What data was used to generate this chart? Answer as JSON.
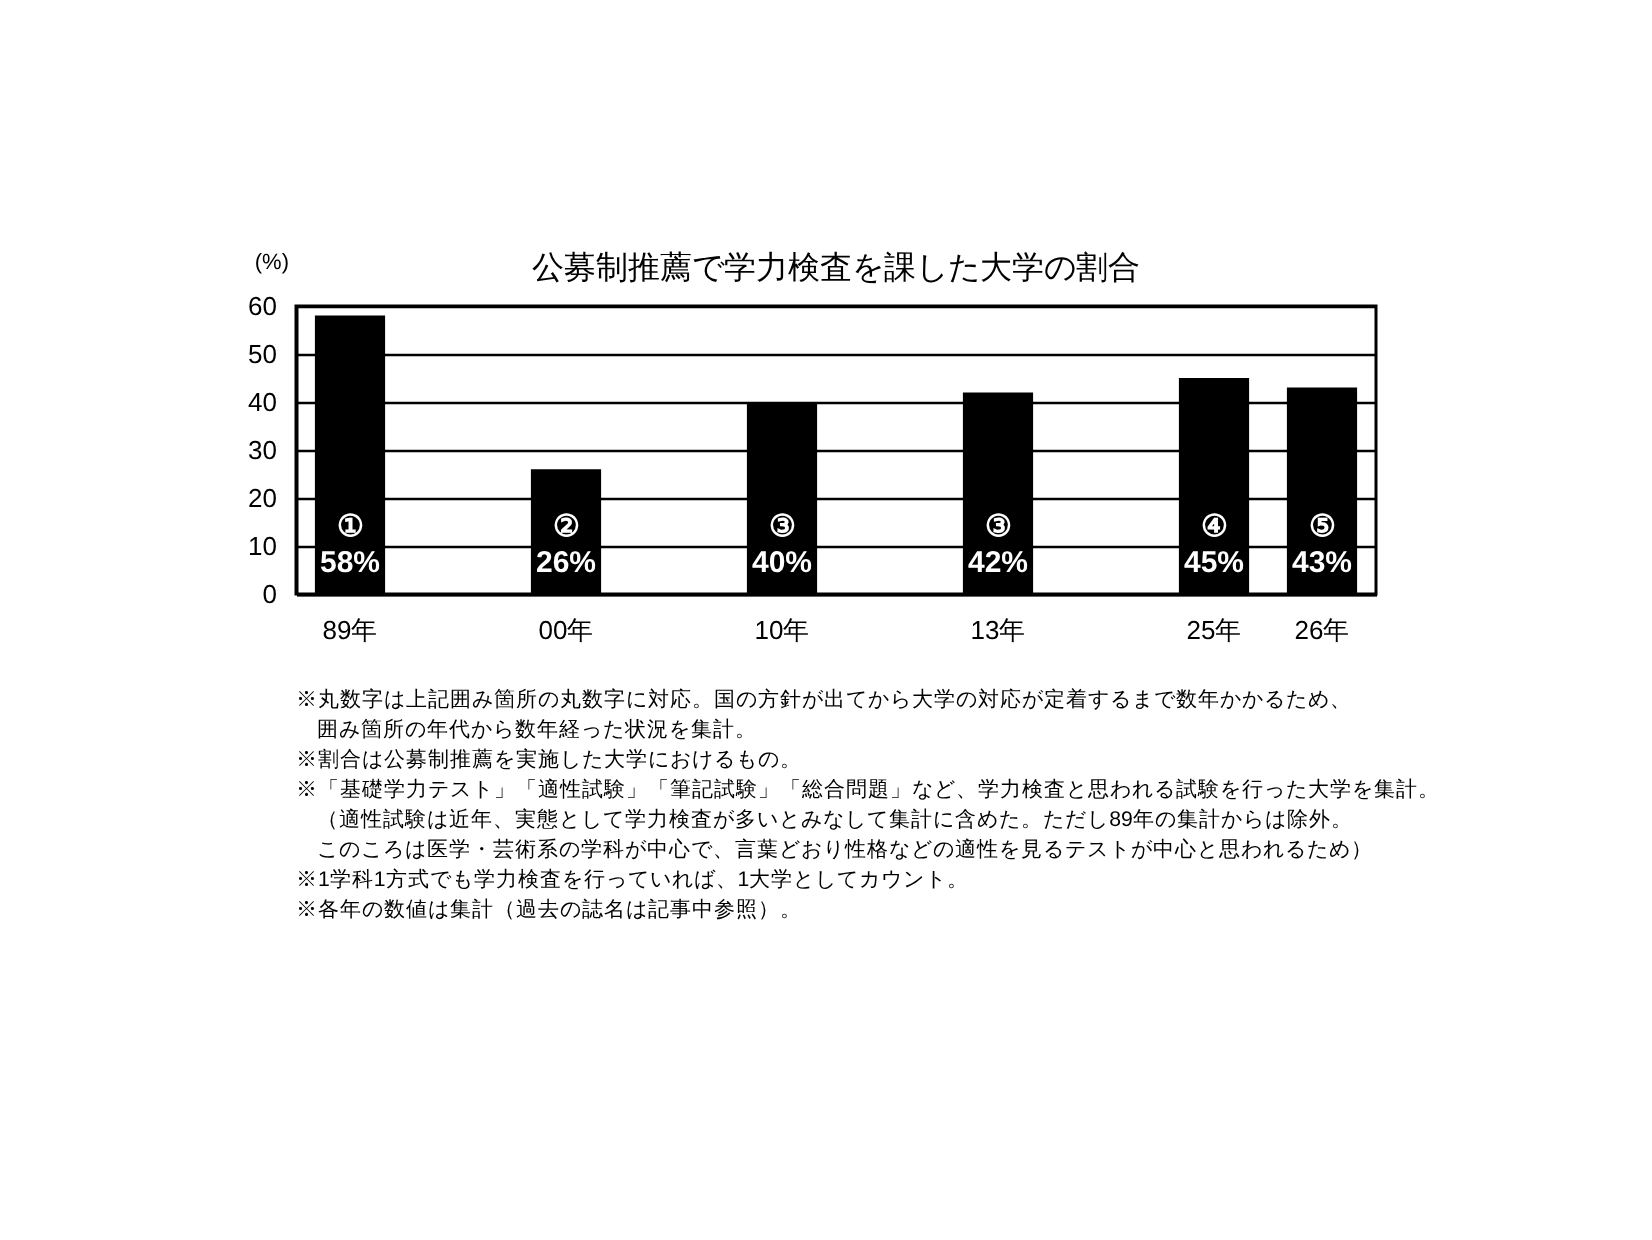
{
  "chart_data": {
    "type": "bar",
    "title": "公募制推薦で学力検査を課した大学の割合",
    "ylabel": "(%)",
    "categories": [
      "89年",
      null,
      "00年",
      null,
      "10年",
      null,
      "13年",
      null,
      "25年",
      "26年"
    ],
    "values": [
      58,
      null,
      26,
      null,
      40,
      null,
      42,
      null,
      45,
      43
    ],
    "value_labels": [
      "①\n58%",
      null,
      "②\n26%",
      null,
      "③\n40%",
      null,
      "③\n42%",
      null,
      "④\n45%",
      "⑤\n43%"
    ],
    "color": "#000000",
    "ylim": [
      0,
      60
    ],
    "yticks": [
      0,
      10,
      20,
      30,
      40,
      50,
      60
    ],
    "grid": "y",
    "annotations": [
      "※丸数字は上記囲み箇所の丸数字に対応。国の方針が出てから大学の対応が定着するまで数年かかるため、",
      "　囲み箇所の年代から数年経った状況を集計。",
      "※割合は公募制推薦を実施した大学におけるもの。",
      "※「基礎学力テスト」「適性試験」「筆記試験」「総合問題」など、学力検査と思われる試験を行った大学を集計。",
      "　（適性試験は近年、実態として学力検査が多いとみなして集計に含めた。ただし89年の集計からは除外。",
      "　このころは医学・芸術系の学科が中心で、言葉どおり性格などの適性を見るテストが中心と思われるため）",
      "※1学科1方式でも学力検査を行っていれば、1大学としてカウント。",
      "※各年の数値は集計（過去の誌名は記事中参照）。"
    ]
  }
}
